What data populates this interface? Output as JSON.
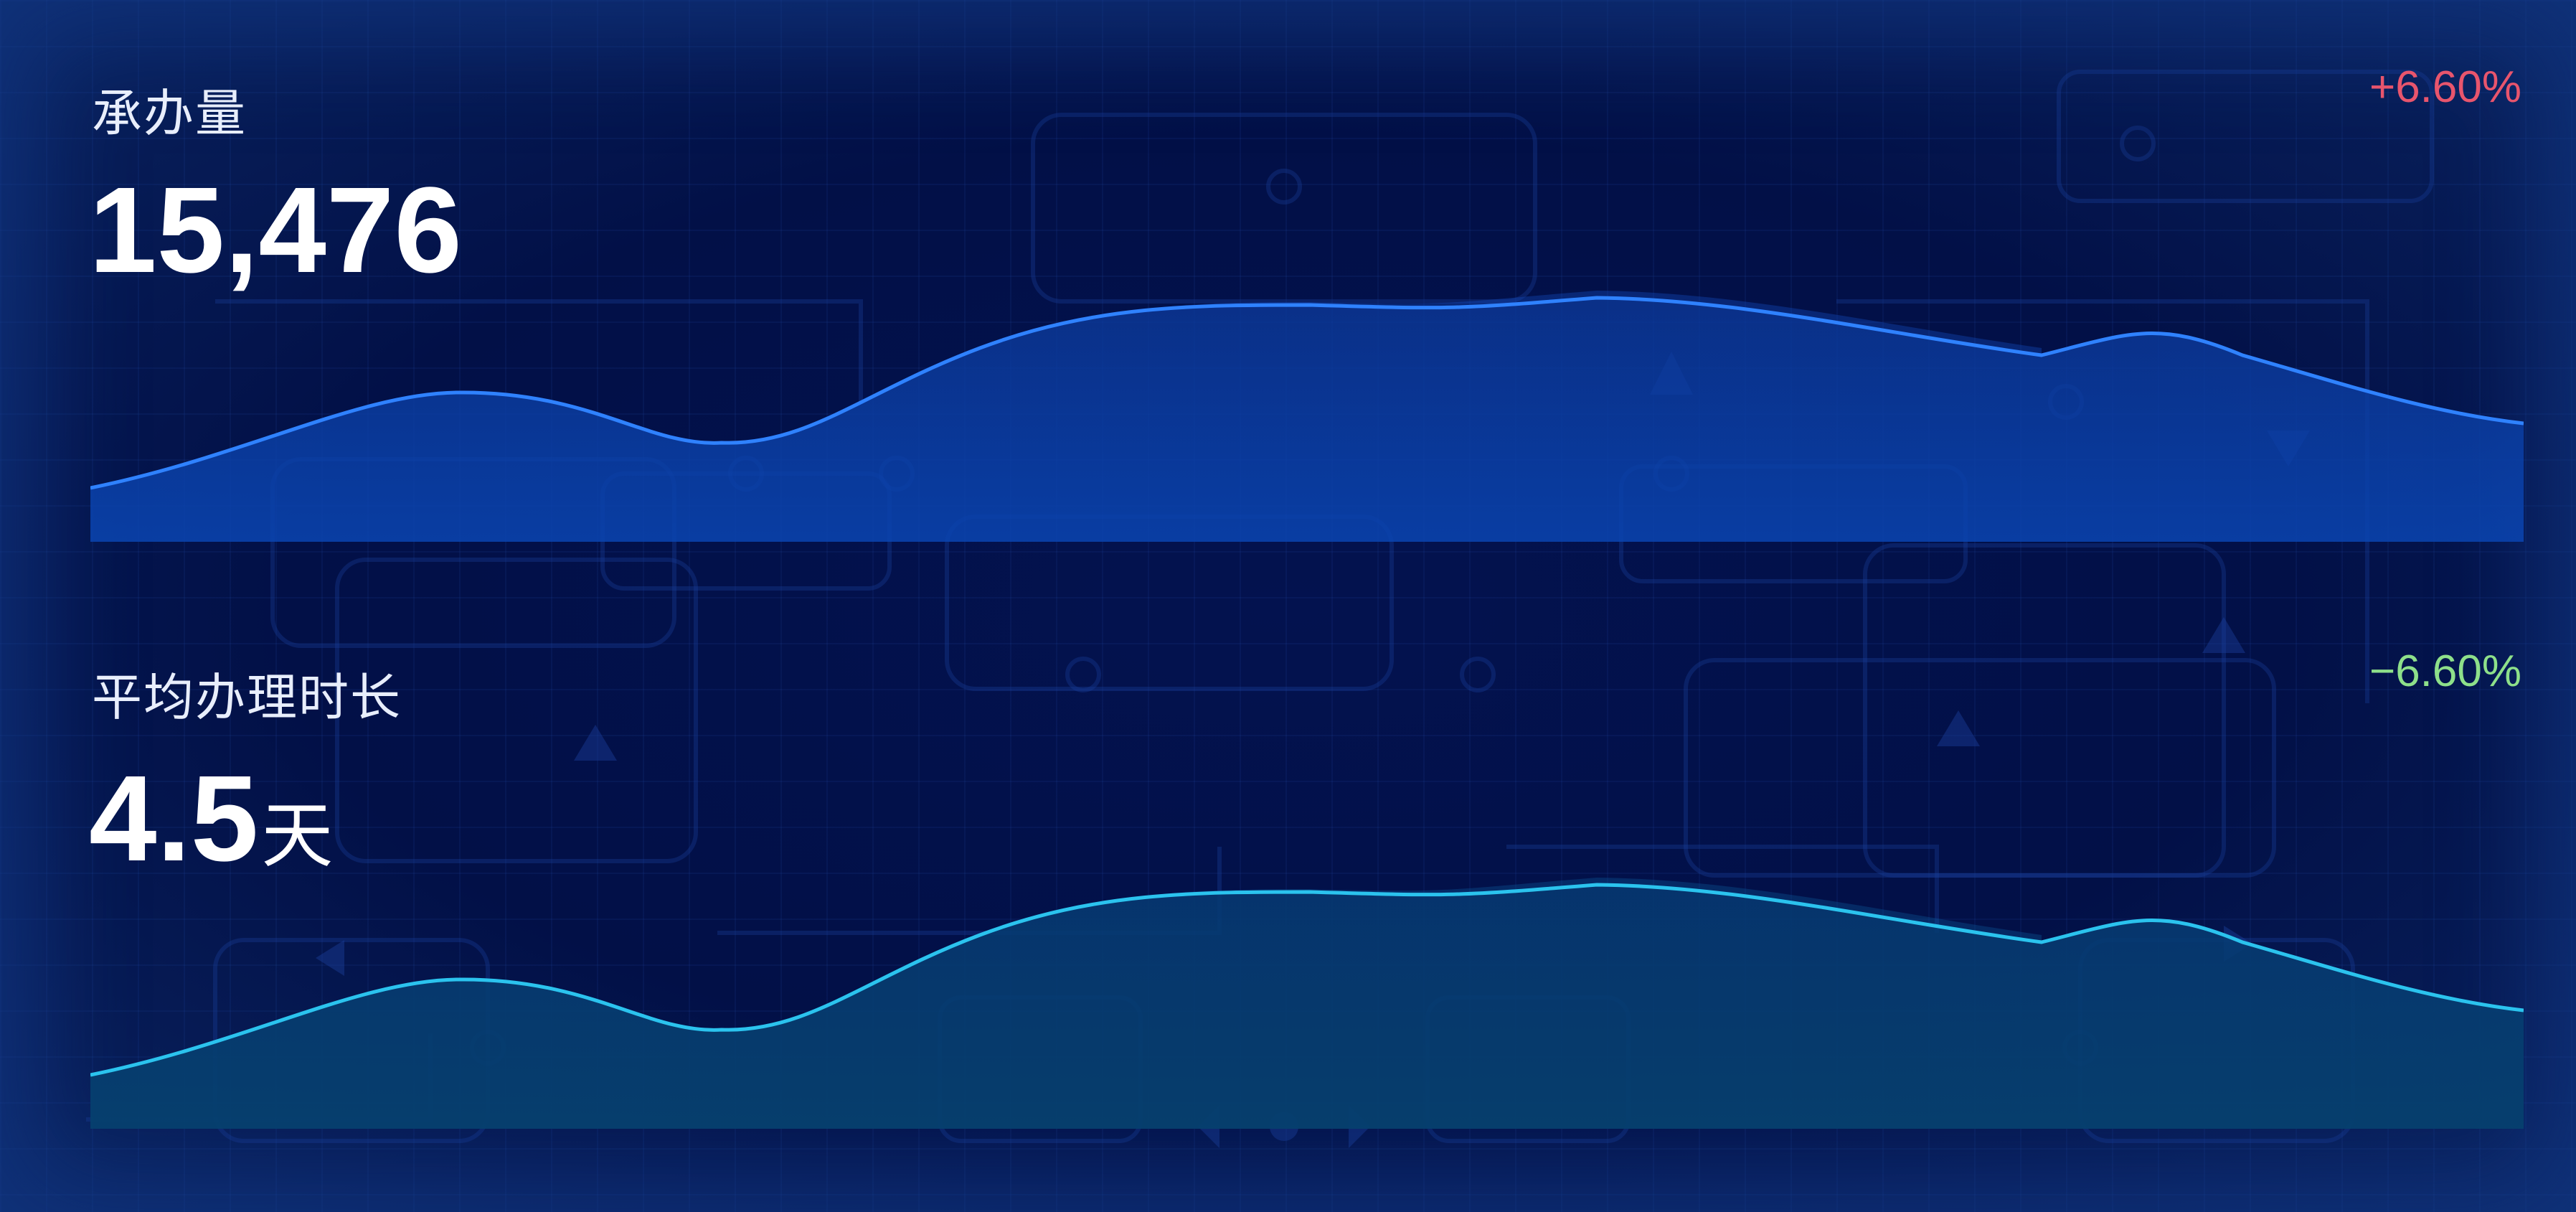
{
  "panels": [
    {
      "label": "承办量",
      "value": "15,476",
      "unit": "",
      "change": "+6.60%",
      "change_color": "#e8556d",
      "line_color": "#2f82ff",
      "fill_color": "#0a3a9e"
    },
    {
      "label": "平均办理时长",
      "value": "4.5",
      "unit": "天",
      "change": "−6.60%",
      "change_color": "#8ee08a",
      "line_color": "#2bc3ee",
      "fill_color": "#073b78"
    }
  ]
}
